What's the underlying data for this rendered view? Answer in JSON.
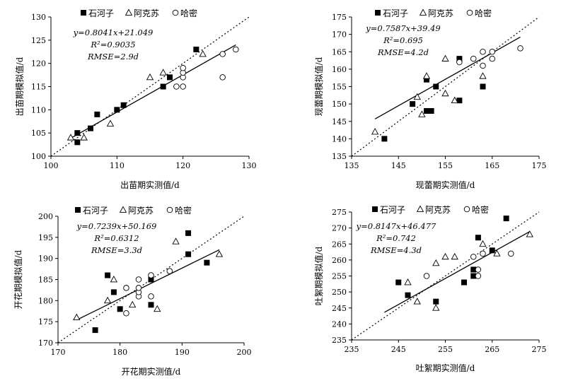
{
  "legend_labels": [
    "石河子",
    "阿克苏",
    "哈密"
  ],
  "chart_data": [
    {
      "type": "scatter",
      "xlabel": "出苗期实测值/d",
      "ylabel": "出苗期模拟值/d",
      "xlim": [
        100,
        130
      ],
      "ylim": [
        100,
        130
      ],
      "xticks": [
        100,
        110,
        120,
        130
      ],
      "yticks": [
        100,
        105,
        110,
        115,
        120,
        125,
        130
      ],
      "equation": "y=0.8041x+21.049",
      "r2": "R²=0.9035",
      "rmse": "RMSE=2.9d",
      "fit": {
        "slope": 0.8041,
        "intercept": 21.049,
        "x_range": [
          103,
          128
        ]
      },
      "one_to_one": true,
      "series": [
        {
          "name": "石河子",
          "marker": "filled-square",
          "points": [
            [
              104,
              103
            ],
            [
              104,
              105
            ],
            [
              106,
              106
            ],
            [
              107,
              109
            ],
            [
              110,
              110
            ],
            [
              111,
              111
            ],
            [
              117,
              115
            ],
            [
              118,
              117
            ],
            [
              122,
              123
            ]
          ]
        },
        {
          "name": "阿克苏",
          "marker": "open-triangle",
          "points": [
            [
              103,
              104
            ],
            [
              105,
              104
            ],
            [
              109,
              107
            ],
            [
              115,
              117
            ],
            [
              117,
              118
            ],
            [
              123,
              122
            ]
          ]
        },
        {
          "name": "哈密",
          "marker": "open-circle",
          "points": [
            [
              119,
              115
            ],
            [
              120,
              115
            ],
            [
              120,
              117
            ],
            [
              120,
              118
            ],
            [
              120,
              119
            ],
            [
              126,
              117
            ],
            [
              126,
              122
            ],
            [
              128,
              123
            ]
          ]
        }
      ]
    },
    {
      "type": "scatter",
      "xlabel": "现蕾期实测值/d",
      "ylabel": "现蕾期模拟值/d",
      "xlim": [
        135,
        175
      ],
      "ylim": [
        135,
        175
      ],
      "xticks": [
        135,
        145,
        155,
        165,
        175
      ],
      "yticks": [
        135,
        140,
        145,
        150,
        155,
        160,
        165,
        170,
        175
      ],
      "equation": "y=0.7587x+39.49",
      "r2": "R²=0.695",
      "rmse": "RMSE=4.2d",
      "fit": {
        "slope": 0.7587,
        "intercept": 39.49,
        "x_range": [
          140,
          171
        ]
      },
      "one_to_one": true,
      "series": [
        {
          "name": "石河子",
          "marker": "filled-square",
          "points": [
            [
              142,
              140
            ],
            [
              148,
              150
            ],
            [
              151,
              148
            ],
            [
              151,
              157
            ],
            [
              152,
              148
            ],
            [
              153,
              155
            ],
            [
              158,
              151
            ],
            [
              158,
              163
            ],
            [
              163,
              155
            ]
          ]
        },
        {
          "name": "阿克苏",
          "marker": "open-triangle",
          "points": [
            [
              140,
              142
            ],
            [
              149,
              152
            ],
            [
              150,
              147
            ],
            [
              151,
              158
            ],
            [
              155,
              153
            ],
            [
              155,
              163
            ],
            [
              157,
              151
            ],
            [
              163,
              158
            ]
          ]
        },
        {
          "name": "哈密",
          "marker": "open-circle",
          "points": [
            [
              158,
              162
            ],
            [
              161,
              163
            ],
            [
              163,
              161
            ],
            [
              163,
              165
            ],
            [
              165,
              163
            ],
            [
              165,
              165
            ],
            [
              171,
              166
            ]
          ]
        }
      ]
    },
    {
      "type": "scatter",
      "xlabel": "开花期实测值/d",
      "ylabel": "开花期模拟值/d",
      "xlim": [
        170,
        200
      ],
      "ylim": [
        170,
        200
      ],
      "xticks": [
        170,
        180,
        190,
        200
      ],
      "yticks": [
        170,
        175,
        180,
        185,
        190,
        195,
        200
      ],
      "equation": "y=0.7239x+50.169",
      "r2": "R²=0.6312",
      "rmse": "RMSE=3.3d",
      "fit": {
        "slope": 0.7239,
        "intercept": 50.169,
        "x_range": [
          173,
          196
        ]
      },
      "one_to_one": true,
      "series": [
        {
          "name": "石河子",
          "marker": "filled-square",
          "points": [
            [
              176,
              173
            ],
            [
              178,
              186
            ],
            [
              179,
              182
            ],
            [
              180,
              178
            ],
            [
              185,
              179
            ],
            [
              185,
              185
            ],
            [
              191,
              191
            ],
            [
              191,
              196
            ],
            [
              194,
              189
            ]
          ]
        },
        {
          "name": "阿克苏",
          "marker": "open-triangle",
          "points": [
            [
              173,
              176
            ],
            [
              178,
              180
            ],
            [
              179,
              185
            ],
            [
              182,
              179
            ],
            [
              186,
              178
            ],
            [
              189,
              194
            ],
            [
              196,
              191
            ]
          ]
        },
        {
          "name": "哈密",
          "marker": "open-circle",
          "points": [
            [
              181,
              177
            ],
            [
              181,
              183
            ],
            [
              183,
              181
            ],
            [
              183,
              182
            ],
            [
              183,
              183
            ],
            [
              183,
              185
            ],
            [
              185,
              181
            ],
            [
              185,
              186
            ],
            [
              188,
              187
            ]
          ]
        }
      ]
    },
    {
      "type": "scatter",
      "xlabel": "吐絮期实测值/d",
      "ylabel": "吐絮期模拟值/d",
      "xlim": [
        235,
        275
      ],
      "ylim": [
        235,
        275
      ],
      "xticks": [
        235,
        245,
        255,
        265,
        275
      ],
      "yticks": [
        235,
        240,
        245,
        250,
        255,
        260,
        265,
        270,
        275
      ],
      "equation": "y=0.8147x+46.477",
      "r2": "R²=0.742",
      "rmse": "RMSE=4.3d",
      "fit": {
        "slope": 0.8147,
        "intercept": 46.477,
        "x_range": [
          242,
          273
        ]
      },
      "one_to_one": true,
      "series": [
        {
          "name": "石河子",
          "marker": "filled-square",
          "points": [
            [
              245,
              253
            ],
            [
              247,
              249
            ],
            [
              253,
              247
            ],
            [
              259,
              253
            ],
            [
              261,
              255
            ],
            [
              261,
              257
            ],
            [
              262,
              267
            ],
            [
              265,
              263
            ],
            [
              268,
              273
            ]
          ]
        },
        {
          "name": "阿克苏",
          "marker": "open-triangle",
          "points": [
            [
              247,
              253
            ],
            [
              249,
              247
            ],
            [
              253,
              245
            ],
            [
              253,
              259
            ],
            [
              255,
              261
            ],
            [
              257,
              261
            ],
            [
              263,
              265
            ],
            [
              266,
              262
            ],
            [
              273,
              268
            ]
          ]
        },
        {
          "name": "哈密",
          "marker": "open-circle",
          "points": [
            [
              251,
              255
            ],
            [
              261,
              261
            ],
            [
              262,
              255
            ],
            [
              262,
              257
            ],
            [
              263,
              262
            ],
            [
              269,
              262
            ]
          ]
        }
      ]
    }
  ]
}
